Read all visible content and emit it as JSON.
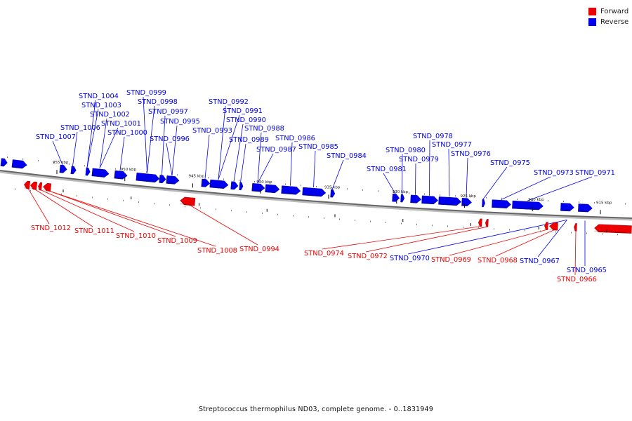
{
  "legend": {
    "forward_label": "Forward",
    "reverse_label": "Reverse",
    "forward_color": "#ee0000",
    "reverse_color": "#0000ee"
  },
  "caption": "Streptococcus thermophilus ND03, complete genome. - 0..1831949",
  "ticks": [
    {
      "label": "955 kbp",
      "kbp": 955
    },
    {
      "label": "950 kbp",
      "kbp": 950
    },
    {
      "label": "945 kbp",
      "kbp": 945
    },
    {
      "label": "940 kbp",
      "kbp": 940
    },
    {
      "label": "935 kbp",
      "kbp": 935
    },
    {
      "label": "930 kbp",
      "kbp": 930
    },
    {
      "label": "925 kbp",
      "kbp": 925
    },
    {
      "label": "920 kbp",
      "kbp": 920
    },
    {
      "label": "915 kbp",
      "kbp": 915
    }
  ],
  "genes_forward": [
    "STND_1012",
    "STND_1011",
    "STND_1010",
    "STND_1009",
    "STND_1008",
    "STND_0994",
    "STND_0974",
    "STND_0972",
    "STND_0969",
    "STND_0968",
    "STND_0966"
  ],
  "genes_reverse": [
    "STND_1007",
    "STND_1006",
    "STND_1004",
    "STND_1003",
    "STND_1002",
    "STND_1001",
    "STND_1000",
    "STND_0999",
    "STND_0998",
    "STND_0997",
    "STND_0996",
    "STND_0995",
    "STND_0993",
    "STND_0992",
    "STND_0991",
    "STND_0990",
    "STND_0989",
    "STND_0988",
    "STND_0987",
    "STND_0986",
    "STND_0985",
    "STND_0984",
    "STND_0981",
    "STND_0980",
    "STND_0979",
    "STND_0978",
    "STND_0977",
    "STND_0976",
    "STND_0975",
    "STND_0973",
    "STND_0971",
    "STND_0970",
    "STND_0967",
    "STND_0965"
  ]
}
